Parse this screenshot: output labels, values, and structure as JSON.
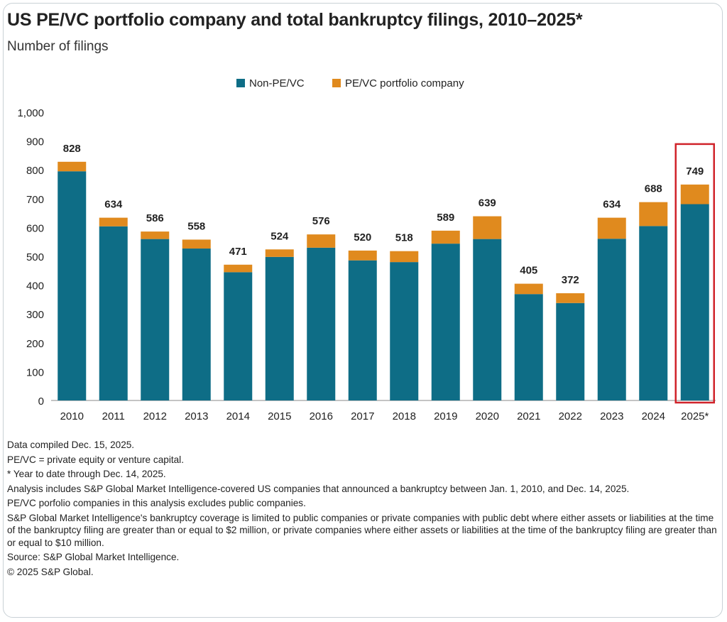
{
  "title": "US PE/VC portfolio company and total bankruptcy filings, 2010–2025*",
  "subtitle": "Number of filings",
  "colors": {
    "non_pevc": "#0e6d86",
    "pevc": "#e08a1e",
    "highlight": "#d0232a",
    "axis": "#888888",
    "text": "#222222"
  },
  "chart_data": {
    "type": "bar",
    "stacked": true,
    "categories": [
      "2010",
      "2011",
      "2012",
      "2013",
      "2014",
      "2015",
      "2016",
      "2017",
      "2018",
      "2019",
      "2020",
      "2021",
      "2022",
      "2023",
      "2024",
      "2025*"
    ],
    "series": [
      {
        "name": "Non-PE/VC",
        "values": [
          795,
          604,
          560,
          527,
          445,
          498,
          530,
          486,
          480,
          544,
          560,
          369,
          338,
          561,
          605,
          681
        ]
      },
      {
        "name": "PE/VC portfolio company",
        "values": [
          33,
          30,
          26,
          31,
          26,
          26,
          46,
          34,
          38,
          45,
          79,
          36,
          34,
          73,
          83,
          68
        ]
      }
    ],
    "totals": [
      828,
      634,
      586,
      558,
      471,
      524,
      576,
      520,
      518,
      589,
      639,
      405,
      372,
      634,
      688,
      749
    ],
    "total_labels": [
      "828",
      "634",
      "586",
      "558",
      "471",
      "524",
      "576",
      "520",
      "518",
      "589",
      "639",
      "405",
      "372",
      "634",
      "688",
      "749"
    ],
    "ylim": [
      0,
      1000
    ],
    "yticks": [
      "0",
      "100",
      "200",
      "300",
      "400",
      "500",
      "600",
      "700",
      "800",
      "900",
      "1,000"
    ],
    "legend_position": "top-center",
    "highlighted_category": "2025*",
    "xlabel": "",
    "ylabel": "",
    "grid": false
  },
  "notes": [
    "Data compiled Dec. 15, 2025.",
    "PE/VC = private equity or venture capital.",
    "* Year to date through Dec. 14, 2025.",
    "Analysis includes S&P Global Market Intelligence-covered US companies that announced a bankruptcy between Jan. 1, 2010, and Dec. 14, 2025.",
    "PE/VC porfolio companies in this analysis excludes public companies.",
    "S&P Global Market Intelligence's bankruptcy coverage is limited to public companies or private companies with public debt where either assets or liabilities at the time of the bankruptcy filing are greater than or equal to $2 million, or private companies where either assets or liabilities at the time of the bankruptcy filing are greater than or equal to $10 million.",
    "Source: S&P Global Market Intelligence.",
    "© 2025 S&P Global."
  ]
}
